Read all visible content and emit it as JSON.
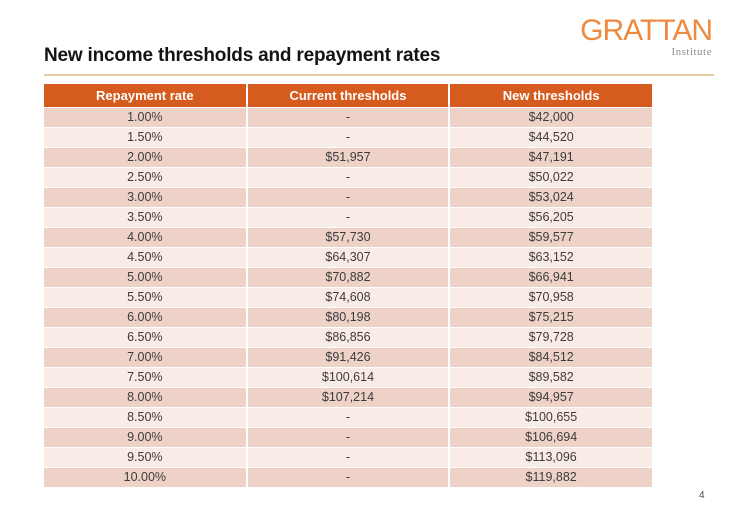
{
  "slide": {
    "title": "New income thresholds and repayment rates",
    "page_number": "4"
  },
  "logo": {
    "name": "GRATTAN",
    "subtitle": "Institute"
  },
  "colors": {
    "header_bg": "#D55B1F",
    "row_dark": "#EFD2C7",
    "row_light": "#F9EBE6",
    "logo_orange": "#EE8A3E",
    "title_rule": "#E9CDA3",
    "body_text": "#3C3C3C"
  },
  "table": {
    "columns": [
      "Repayment rate",
      "Current thresholds",
      "New thresholds"
    ],
    "rows": [
      [
        "1.00%",
        "-",
        "$42,000"
      ],
      [
        "1.50%",
        "-",
        "$44,520"
      ],
      [
        "2.00%",
        "$51,957",
        "$47,191"
      ],
      [
        "2.50%",
        "-",
        "$50,022"
      ],
      [
        "3.00%",
        "-",
        "$53,024"
      ],
      [
        "3.50%",
        "-",
        "$56,205"
      ],
      [
        "4.00%",
        "$57,730",
        "$59,577"
      ],
      [
        "4.50%",
        "$64,307",
        "$63,152"
      ],
      [
        "5.00%",
        "$70,882",
        "$66,941"
      ],
      [
        "5.50%",
        "$74,608",
        "$70,958"
      ],
      [
        "6.00%",
        "$80,198",
        "$75,215"
      ],
      [
        "6.50%",
        "$86,856",
        "$79,728"
      ],
      [
        "7.00%",
        "$91,426",
        "$84,512"
      ],
      [
        "7.50%",
        "$100,614",
        "$89,582"
      ],
      [
        "8.00%",
        "$107,214",
        "$94,957"
      ],
      [
        "8.50%",
        "-",
        "$100,655"
      ],
      [
        "9.00%",
        "-",
        "$106,694"
      ],
      [
        "9.50%",
        "-",
        "$113,096"
      ],
      [
        "10.00%",
        "-",
        "$119,882"
      ]
    ]
  }
}
